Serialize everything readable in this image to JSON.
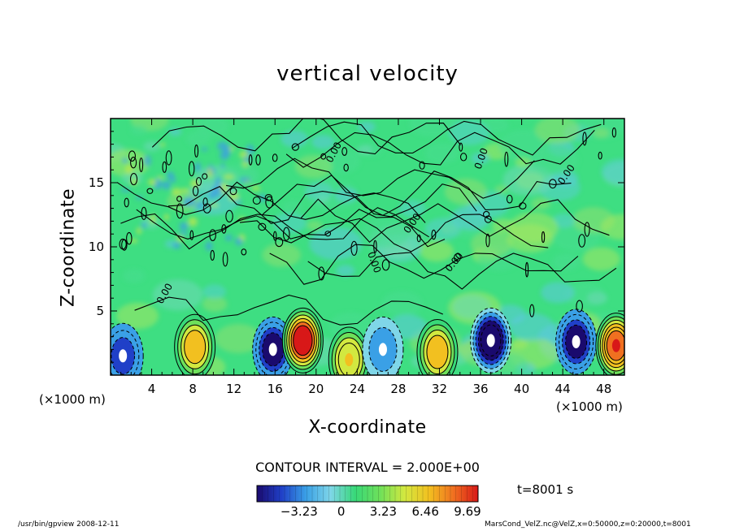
{
  "chart_data": {
    "type": "heatmap",
    "title": "vertical velocity",
    "xlabel": "X-coordinate",
    "ylabel": "Z-coordinate",
    "x_unit_label": "(×1000 m)",
    "xlim": [
      0,
      50
    ],
    "ylim": [
      0,
      20
    ],
    "x_ticks": [
      4,
      8,
      12,
      16,
      20,
      24,
      28,
      32,
      36,
      40,
      44,
      48
    ],
    "y_ticks": [
      5,
      10,
      15
    ],
    "contour_interval_text": "CONTOUR INTERVAL = 2.000E+00",
    "contour_label": "0.00",
    "colorbar": {
      "ticks": [
        -3.23,
        0,
        3.23,
        6.46,
        9.69
      ],
      "tick_labels": [
        "−3.23",
        "0",
        "3.23",
        "6.46",
        "9.69"
      ],
      "range": [
        -6.46,
        10.5
      ],
      "colors": [
        "#1a0a6e",
        "#2040c8",
        "#3aa0e6",
        "#7fd6e8",
        "#38d878",
        "#6ee05a",
        "#d2e840",
        "#f2c020",
        "#f07020",
        "#d81818"
      ]
    },
    "features": [
      {
        "x": 1.2,
        "z": 1.5,
        "value": -4.5
      },
      {
        "x": 8.2,
        "z": 2.2,
        "value": 6.0
      },
      {
        "x": 15.8,
        "z": 2.0,
        "value": -6.0
      },
      {
        "x": 18.7,
        "z": 2.7,
        "value": 9.0
      },
      {
        "x": 23.2,
        "z": 1.2,
        "value": 5.0
      },
      {
        "x": 26.5,
        "z": 2.0,
        "value": -2.5
      },
      {
        "x": 31.8,
        "z": 1.8,
        "value": 6.0
      },
      {
        "x": 37.0,
        "z": 2.7,
        "value": -6.5
      },
      {
        "x": 45.3,
        "z": 2.6,
        "value": -5.5
      },
      {
        "x": 49.2,
        "z": 2.3,
        "value": 8.5
      }
    ],
    "time_label": "t=8001 s",
    "footer_left": "/usr/bin/gpview   2008-12-11",
    "footer_right": "MarsCond_VelZ.nc@VelZ,x=0:50000,z=0:20000,t=8001"
  }
}
